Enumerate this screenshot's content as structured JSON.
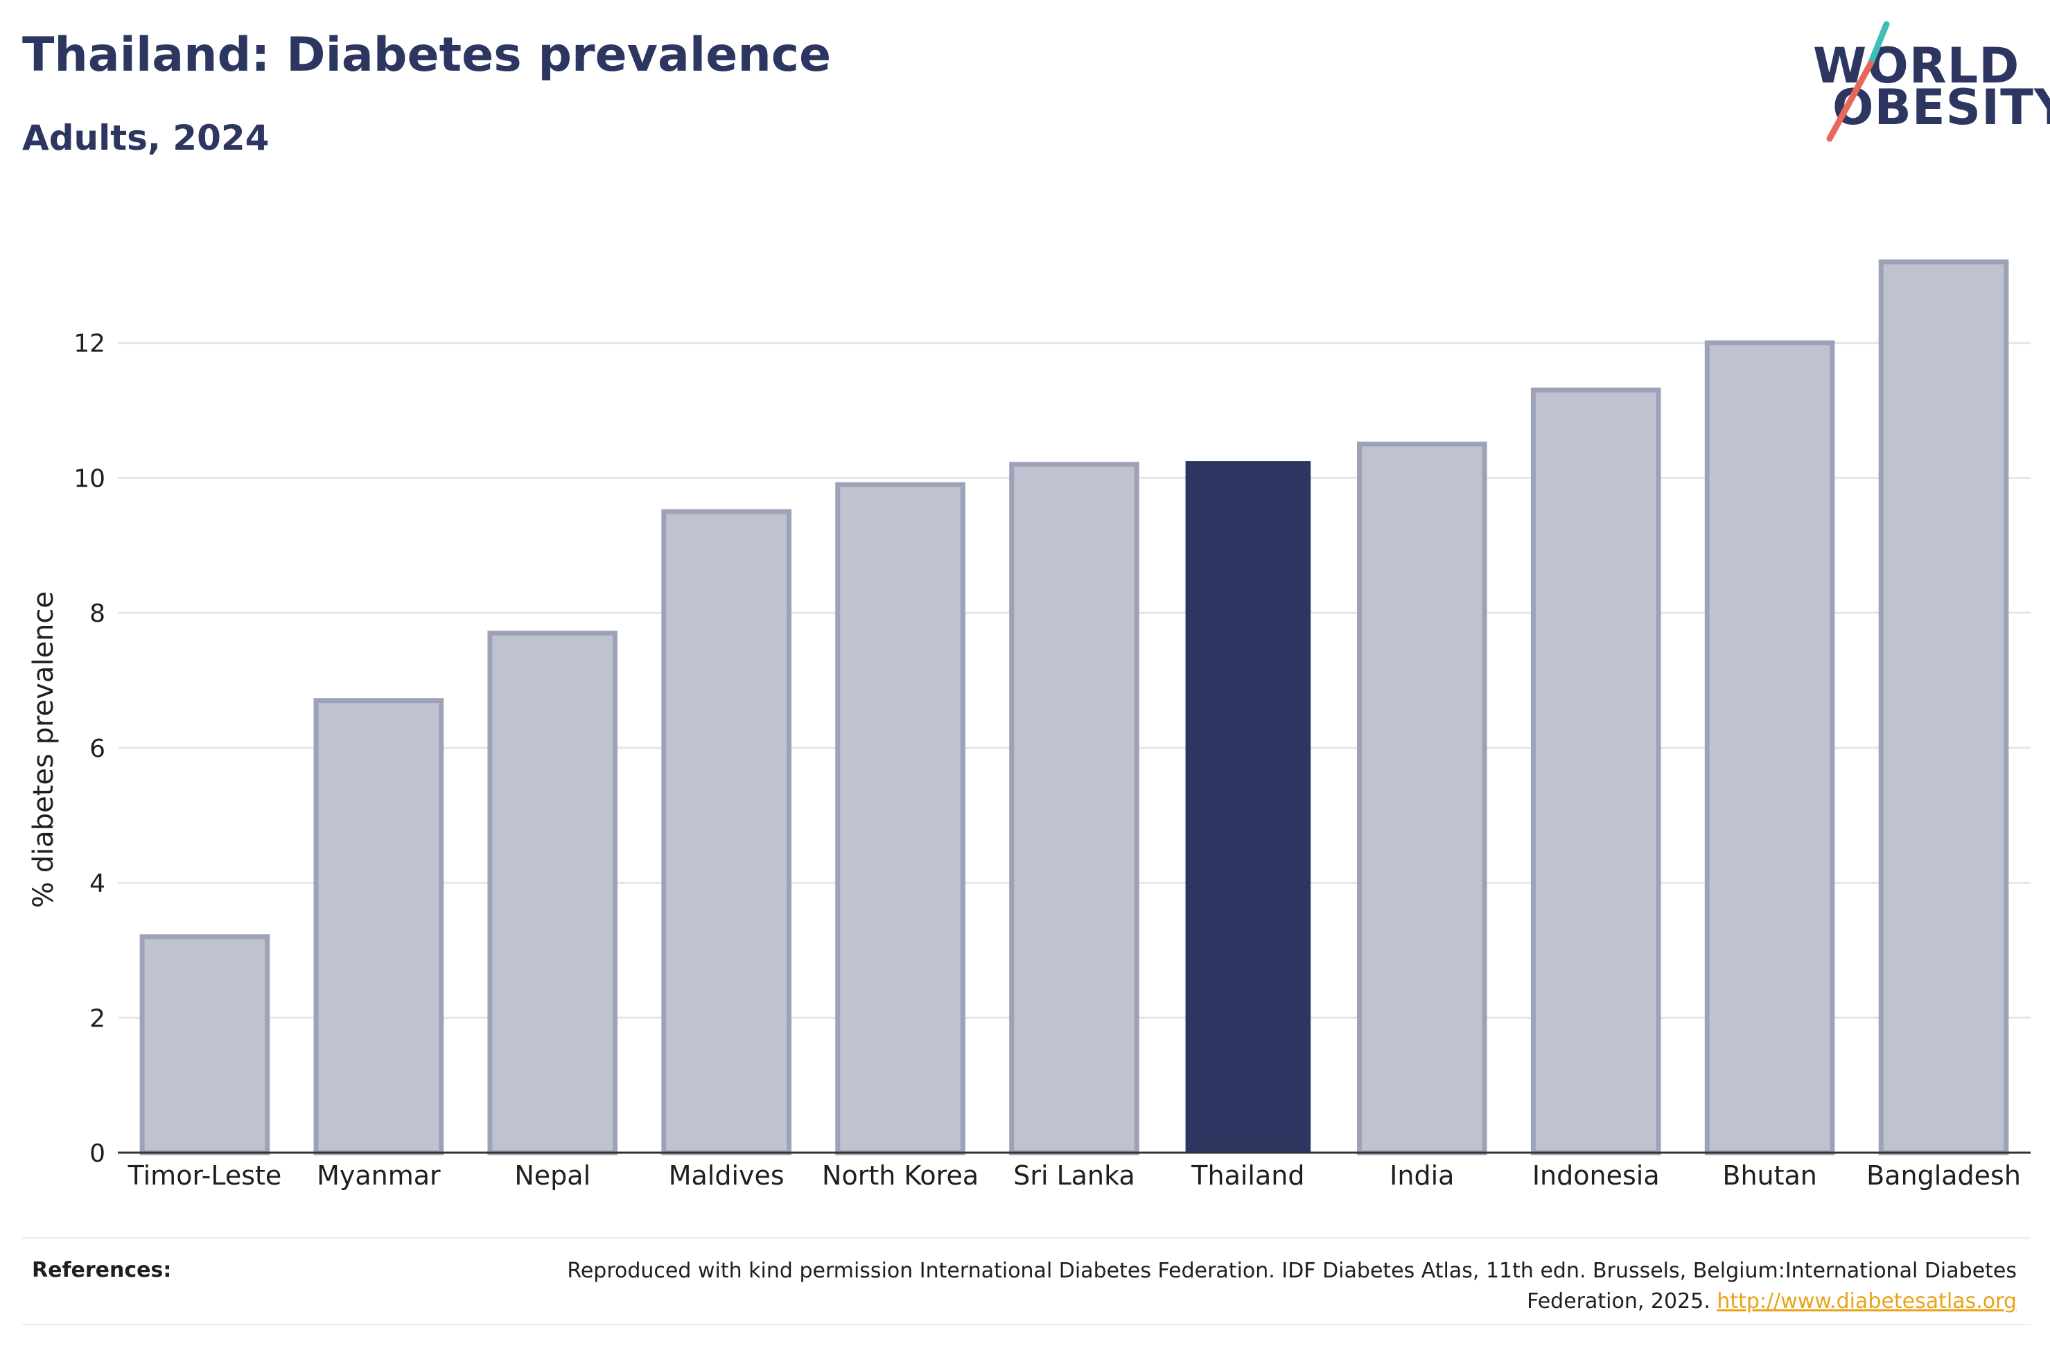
{
  "header": {
    "title": "Thailand: Diabetes prevalence",
    "subtitle": "Adults, 2024"
  },
  "logo": {
    "line1": "WORLD",
    "line2": "OBESITY",
    "accent_colors": [
      "#3fbfb6",
      "#e8685a"
    ]
  },
  "chart_data": {
    "type": "bar",
    "categories": [
      "Timor-Leste",
      "Myanmar",
      "Nepal",
      "Maldives",
      "North Korea",
      "Sri Lanka",
      "Thailand",
      "India",
      "Indonesia",
      "Bhutan",
      "Bangladesh"
    ],
    "values": [
      3.2,
      6.7,
      7.7,
      9.5,
      9.9,
      10.2,
      10.25,
      10.5,
      11.3,
      12.0,
      13.2
    ],
    "highlight": "Thailand",
    "ylabel": "% diabetes prevalence",
    "xlabel": "",
    "ylim": [
      0,
      14
    ],
    "yticks": [
      0,
      2,
      4,
      6,
      8,
      10,
      12
    ],
    "grid": true,
    "colors": {
      "highlight": "#2c3660",
      "default_fill": "#bfc2cf",
      "default_stroke": "#9ea2b8"
    }
  },
  "references": {
    "label": "References:",
    "text": "Reproduced with kind permission International Diabetes Federation. IDF Diabetes Atlas, 11th edn. Brussels, Belgium:International Diabetes Federation, 2025.",
    "link": "http://www.diabetesatlas.org"
  }
}
